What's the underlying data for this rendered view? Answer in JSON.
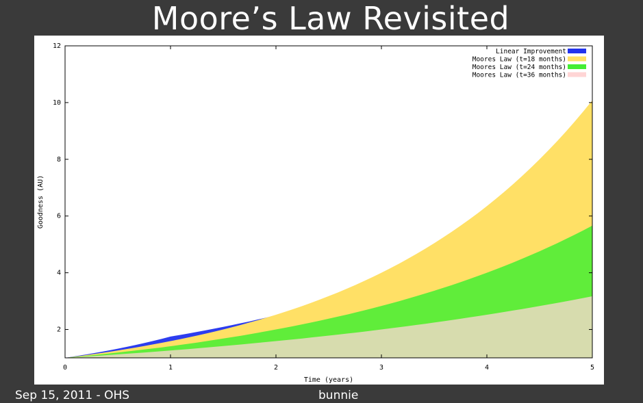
{
  "slide": {
    "title": "Moore’s Law Revisited",
    "footer_left": "Sep 15, 2011 - OHS",
    "footer_center": "bunnie"
  },
  "chart_data": {
    "type": "area",
    "title": "",
    "xlabel": "Time (years)",
    "ylabel": "Goodness (AU)",
    "xlim": [
      0,
      5
    ],
    "ylim": [
      1,
      12
    ],
    "xticks": [
      0,
      1,
      2,
      3,
      4,
      5
    ],
    "yticks": [
      2,
      4,
      6,
      8,
      10,
      12
    ],
    "legend_position": "top-right",
    "grid": false,
    "series": [
      {
        "name": "Linear Improvement",
        "color": "#2233ee",
        "formula": "1 + 0.75*t",
        "x": [
          0,
          1,
          2,
          3,
          4,
          5
        ],
        "values": [
          1,
          1.75,
          2.5,
          3.25,
          4.0,
          4.75
        ]
      },
      {
        "name": "Moores Law (t=18 months)",
        "color": "#ffe066",
        "formula": "2^(t/1.5)",
        "x": [
          0,
          1,
          2,
          3,
          4,
          5
        ],
        "values": [
          1,
          1.59,
          2.52,
          4.0,
          6.35,
          10.08
        ]
      },
      {
        "name": "Moores Law (t=24 months)",
        "color": "#44ee33",
        "formula": "2^(t/2)",
        "x": [
          0,
          1,
          2,
          3,
          4,
          5
        ],
        "values": [
          1,
          1.41,
          2.0,
          2.83,
          4.0,
          5.66
        ]
      },
      {
        "name": "Moores Law (t=36 months)",
        "color": "#ffd5d5",
        "formula": "2^(t/3)",
        "x": [
          0,
          1,
          2,
          3,
          4,
          5
        ],
        "values": [
          1,
          1.26,
          1.59,
          2.0,
          2.52,
          3.17
        ]
      }
    ]
  }
}
